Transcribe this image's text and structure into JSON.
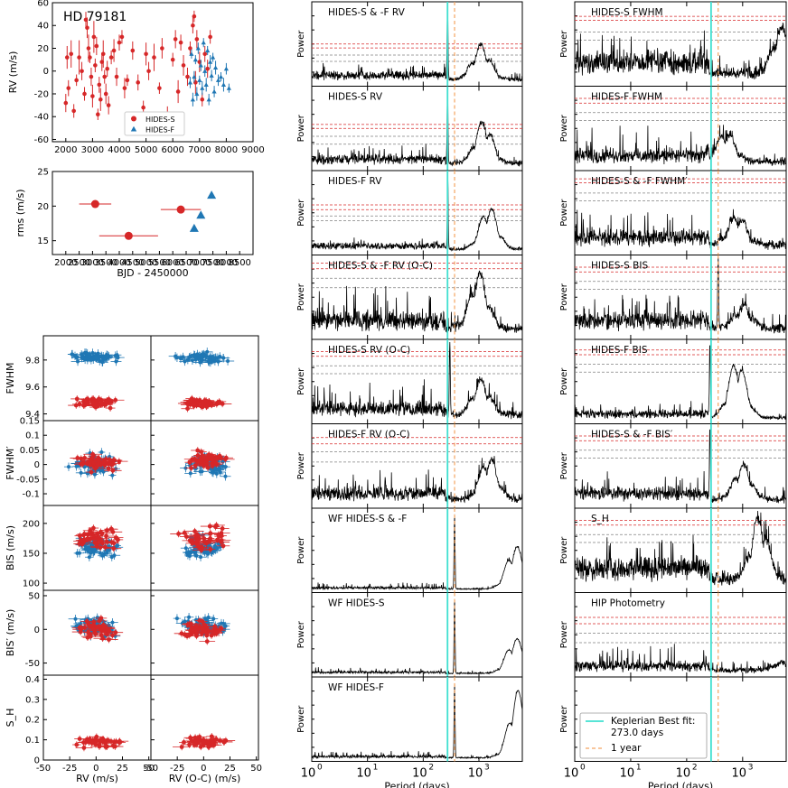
{
  "figure": {
    "star": "HD 79181",
    "colors": {
      "hides_s": "#d62728",
      "hides_f": "#1f77b4",
      "keplerian": "#40e0d0",
      "one_year": "#f4a460",
      "fap_red": "#d62728",
      "fap_gray": "#808080",
      "axis": "#000000"
    }
  },
  "chart_data": [
    {
      "id": "rv-timeseries",
      "type": "scatter",
      "title": "HD 79181",
      "xlabel": "",
      "ylabel": "RV (m/s)",
      "xlim": [
        1500,
        9000
      ],
      "ylim": [
        -62,
        60
      ],
      "xticks": [
        2000,
        3000,
        4000,
        5000,
        6000,
        7000,
        8000,
        9000
      ],
      "yticks": [
        -60,
        -40,
        -20,
        0,
        20,
        40,
        60
      ],
      "legend_position": "lower-center",
      "series": [
        {
          "name": "HIDES-S",
          "marker": "circle",
          "points": [
            [
              2000,
              -28
            ],
            [
              2050,
              12
            ],
            [
              2100,
              -15
            ],
            [
              2200,
              15
            ],
            [
              2300,
              -35
            ],
            [
              2400,
              -8
            ],
            [
              2500,
              12
            ],
            [
              2600,
              0
            ],
            [
              2700,
              -20
            ],
            [
              2750,
              45
            ],
            [
              2800,
              38
            ],
            [
              2850,
              20
            ],
            [
              2900,
              12
            ],
            [
              2950,
              -5
            ],
            [
              3000,
              -22
            ],
            [
              3050,
              30
            ],
            [
              3100,
              5
            ],
            [
              3150,
              22
            ],
            [
              3200,
              -38
            ],
            [
              3250,
              -12
            ],
            [
              3300,
              -25
            ],
            [
              3350,
              8
            ],
            [
              3400,
              15
            ],
            [
              3450,
              -5
            ],
            [
              3500,
              -20
            ],
            [
              3550,
              2
            ],
            [
              3600,
              -30
            ],
            [
              3700,
              12
            ],
            [
              3800,
              18
            ],
            [
              3900,
              -5
            ],
            [
              4000,
              25
            ],
            [
              4100,
              30
            ],
            [
              4200,
              -15
            ],
            [
              4300,
              -8
            ],
            [
              4500,
              18
            ],
            [
              4700,
              -10
            ],
            [
              4900,
              -32
            ],
            [
              5000,
              15
            ],
            [
              5100,
              0
            ],
            [
              5300,
              12
            ],
            [
              5500,
              -15
            ],
            [
              5600,
              20
            ],
            [
              5800,
              -38
            ],
            [
              6000,
              10
            ],
            [
              6100,
              28
            ],
            [
              6200,
              -18
            ],
            [
              6300,
              25
            ],
            [
              6400,
              5
            ],
            [
              6550,
              -5
            ],
            [
              6650,
              20
            ],
            [
              6750,
              40
            ],
            [
              6800,
              48
            ],
            [
              6850,
              -10
            ],
            [
              6900,
              28
            ],
            [
              7000,
              8
            ],
            [
              7100,
              -25
            ],
            [
              7200,
              15
            ],
            [
              7300,
              2
            ],
            [
              7400,
              30
            ]
          ],
          "errors": [
            8,
            10,
            7,
            12,
            6,
            5,
            15,
            8,
            6,
            7,
            9,
            12,
            5,
            8,
            10,
            14,
            6,
            8,
            5,
            7,
            10,
            8,
            12,
            6,
            9,
            7,
            8,
            6,
            10,
            8,
            7,
            6,
            9,
            5,
            8,
            7,
            6,
            10,
            8,
            12,
            5,
            9,
            7,
            6,
            8,
            10,
            7,
            9,
            8,
            6,
            7,
            5,
            10,
            8,
            9,
            6,
            7,
            8,
            6
          ]
        },
        {
          "name": "HIDES-F",
          "marker": "triangle",
          "points": [
            [
              6650,
              -10
            ],
            [
              6700,
              15
            ],
            [
              6750,
              -25
            ],
            [
              6800,
              -5
            ],
            [
              6850,
              10
            ],
            [
              6900,
              -20
            ],
            [
              6950,
              20
            ],
            [
              7000,
              -8
            ],
            [
              7050,
              5
            ],
            [
              7100,
              -15
            ],
            [
              7150,
              25
            ],
            [
              7200,
              0
            ],
            [
              7250,
              -12
            ],
            [
              7300,
              18
            ],
            [
              7350,
              -25
            ],
            [
              7400,
              8
            ],
            [
              7450,
              -4
            ],
            [
              7500,
              12
            ],
            [
              7550,
              -18
            ],
            [
              7600,
              3
            ],
            [
              7700,
              -8
            ],
            [
              7800,
              -5
            ],
            [
              7900,
              -12
            ],
            [
              8000,
              2
            ],
            [
              8100,
              -15
            ]
          ],
          "errors": [
            5,
            4,
            6,
            5,
            4,
            6,
            5,
            4,
            5,
            6,
            4,
            5,
            6,
            4,
            5,
            6,
            5,
            4,
            5,
            6,
            5,
            4,
            6,
            5,
            4
          ]
        }
      ]
    },
    {
      "id": "rms-vs-bjd",
      "type": "scatter",
      "title": "",
      "xlabel": "BJD - 2450000",
      "ylabel": "rms (m/s)",
      "xlim": [
        1500,
        9000
      ],
      "ylim": [
        13,
        25
      ],
      "xticks": [
        2000,
        2500,
        3000,
        3500,
        4000,
        4500,
        5000,
        5500,
        6000,
        6500,
        7000,
        7500,
        8000,
        8500
      ],
      "yticks": [
        15,
        20,
        25
      ],
      "series": [
        {
          "name": "HIDES-S",
          "marker": "circle",
          "points": [
            [
              3100,
              20.3
            ],
            [
              4350,
              15.7
            ],
            [
              6300,
              19.5
            ]
          ],
          "xerr": [
            600,
            1100,
            750
          ]
        },
        {
          "name": "HIDES-F",
          "marker": "triangle",
          "points": [
            [
              6800,
              16.8
            ],
            [
              7050,
              18.7
            ],
            [
              7450,
              21.6
            ]
          ],
          "xerr": [
            0,
            0,
            0
          ]
        }
      ]
    },
    {
      "id": "activity-correlations",
      "type": "scatter",
      "xlabels": [
        "RV (m/s)",
        "RV (O-C) (m/s)"
      ],
      "xlim": [
        -50,
        52
      ],
      "xticks": [
        -50,
        -25,
        0,
        25,
        50
      ],
      "rows": [
        {
          "ylabel": "FWHM",
          "ylim": [
            9.35,
            9.98
          ],
          "yticks": [
            9.4,
            9.6,
            9.8
          ],
          "s_center": 9.48,
          "s_spread": 0.05,
          "f_center": 9.82,
          "f_spread": 0.05
        },
        {
          "ylabel": "FWHM′",
          "ylim": [
            -0.14,
            0.15
          ],
          "yticks": [
            -0.1,
            -0.05,
            0.0,
            0.05,
            0.1,
            0.15
          ],
          "s_center": 0.01,
          "s_spread": 0.05,
          "f_center": 0.0,
          "f_spread": 0.05
        },
        {
          "ylabel": "BIS (m/s)",
          "ylim": [
            88,
            230
          ],
          "yticks": [
            100,
            150,
            200
          ],
          "s_center": 175,
          "s_spread": 25,
          "f_center": 160,
          "f_spread": 25
        },
        {
          "ylabel": "BIS′ (m/s)",
          "ylim": [
            -68,
            58
          ],
          "yticks": [
            -50,
            0,
            50
          ],
          "s_center": 0,
          "s_spread": 20,
          "f_center": 5,
          "f_spread": 18
        },
        {
          "ylabel": "S_H",
          "ylim": [
            0.0,
            0.42
          ],
          "yticks": [
            0.0,
            0.1,
            0.2,
            0.3,
            0.4
          ],
          "s_center": 0.09,
          "s_spread": 0.04,
          "f_center": null,
          "f_spread": null
        }
      ]
    },
    {
      "id": "periodograms",
      "type": "line",
      "xlabel": "Period (days)",
      "ylabel": "Power",
      "xscale": "log",
      "xlim": [
        1,
        6000
      ],
      "xticks": [
        1,
        10,
        100,
        1000
      ],
      "xtick_labels": [
        "10",
        "10",
        "10",
        "10"
      ],
      "xtick_exponents": [
        "0",
        "1",
        "2",
        "3"
      ],
      "keplerian_period": 273.0,
      "year_period": 365.25,
      "columns": [
        [
          {
            "title": "HIDES-S & -F RV",
            "peak": 273,
            "base": 0.12,
            "noise": 0.1,
            "long": [
              1100,
              0.45
            ],
            "fap": [
              0.28,
              0.36,
              0.45,
              0.5
            ]
          },
          {
            "title": "HIDES-S RV",
            "peak": 273,
            "base": 0.12,
            "noise": 0.12,
            "long": [
              1200,
              0.55
            ],
            "fap": [
              0.3,
              0.4,
              0.5,
              0.55
            ]
          },
          {
            "title": "HIDES-F RV",
            "peak": 275,
            "base": 0.1,
            "noise": 0.06,
            "long": [
              1500,
              0.55
            ],
            "fap": [
              0.4,
              0.46,
              0.54,
              0.6
            ]
          },
          {
            "title": "HIDES-S & -F RV (O-C)",
            "peak": null,
            "base": 0.2,
            "noise": 0.3,
            "long": [
              1000,
              0.72
            ],
            "fap": [
              0.62,
              0.74,
              0.86,
              0.93
            ]
          },
          {
            "title": "HIDES-S RV (O-C)",
            "peak": 300,
            "base": 0.15,
            "noise": 0.25,
            "long": [
              1100,
              0.45
            ],
            "fap": [
              0.6,
              0.7,
              0.82,
              0.88
            ]
          },
          {
            "title": "HIDES-F RV (O-C)",
            "peak": null,
            "base": 0.15,
            "noise": 0.22,
            "long": [
              1500,
              0.55
            ],
            "fap": [
              0.55,
              0.68,
              0.78,
              0.86
            ]
          },
          {
            "title": "WF HIDES-S & -F",
            "peak": 365,
            "base": 0.02,
            "noise": 0.05,
            "long": [
              4500,
              0.55
            ],
            "fap": []
          },
          {
            "title": "WF HIDES-S",
            "peak": 365,
            "base": 0.02,
            "noise": 0.05,
            "long": [
              4500,
              0.45
            ],
            "fap": []
          },
          {
            "title": "WF HIDES-F",
            "peak": 365,
            "base": 0.02,
            "noise": 0.05,
            "long": [
              5000,
              0.85
            ],
            "fap": []
          }
        ],
        [
          {
            "title": "HIDES-S FWHM",
            "peak": null,
            "base": 0.3,
            "noise": 0.28,
            "long": [
              5000,
              0.6
            ],
            "fap": [
              0.55,
              0.65,
              0.8,
              0.85
            ]
          },
          {
            "title": "HIDES-F FWHM",
            "peak": null,
            "base": 0.15,
            "noise": 0.25,
            "long": [
              500,
              0.4
            ],
            "fap": [
              0.6,
              0.7,
              0.82,
              0.88
            ]
          },
          {
            "title": "HIDES-S & -F FWHM′",
            "peak": null,
            "base": 0.2,
            "noise": 0.25,
            "long": [
              800,
              0.4
            ],
            "fap": [
              0.65,
              0.75,
              0.88,
              0.93
            ]
          },
          {
            "title": "HIDES-S BIS",
            "peak": 365,
            "base": 0.22,
            "noise": 0.25,
            "long": [
              1000,
              0.3
            ],
            "fap": [
              0.6,
              0.7,
              0.82,
              0.88
            ]
          },
          {
            "title": "HIDES-F BIS",
            "peak": 260,
            "base": 0.1,
            "noise": 0.1,
            "long": [
              800,
              0.75
            ],
            "fap": [
              0.62,
              0.72,
              0.84,
              0.9
            ]
          },
          {
            "title": "HIDES-S & -F BIS′",
            "peak": 260,
            "base": 0.15,
            "noise": 0.22,
            "long": [
              1000,
              0.45
            ],
            "fap": [
              0.6,
              0.7,
              0.82,
              0.88
            ]
          },
          {
            "title": "S_H",
            "peak": null,
            "base": 0.3,
            "noise": 0.3,
            "long": [
              2000,
              0.8
            ],
            "fap": [
              0.6,
              0.7,
              0.82,
              0.88
            ]
          },
          {
            "title": "HIP Photometry",
            "peak": null,
            "base": 0.08,
            "noise": 0.2,
            "long": [
              5000,
              0.1
            ],
            "fap": [
              0.4,
              0.52,
              0.64,
              0.72
            ]
          },
          {
            "title": "",
            "peak": null,
            "base": 0,
            "noise": 0,
            "long": null,
            "fap": [],
            "empty": true
          }
        ]
      ],
      "legend": {
        "keplerian_label": "Keplerian Best fit:",
        "keplerian_value": "273.0 days",
        "year_label": "1 year"
      }
    }
  ]
}
